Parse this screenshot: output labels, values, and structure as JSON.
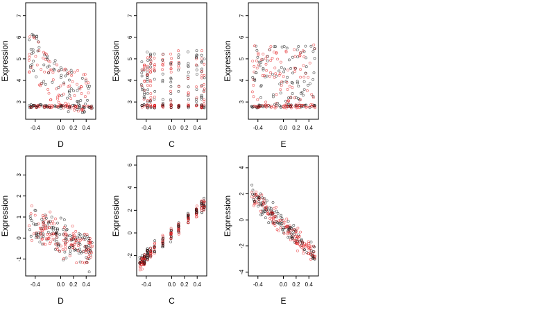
{
  "chart_data": [
    {
      "type": "scatter",
      "xlabel": "D",
      "ylabel": "Expression",
      "xlim": [
        -0.55,
        0.55
      ],
      "ylim": [
        2.2,
        7.6
      ],
      "xticks": [
        -0.4,
        0.0,
        0.2,
        0.4
      ],
      "xtick_labels": [
        "-0.4",
        "0.0",
        "0.2",
        "0.4"
      ],
      "yticks": [
        3,
        4,
        5,
        6,
        7
      ],
      "ytick_labels": [
        "3",
        "4",
        "5",
        "6",
        "7"
      ],
      "series": [
        {
          "color": "#000000"
        },
        {
          "color": "#e31a1c"
        }
      ],
      "trend": {
        "x": [
          -0.5,
          -0.3,
          -0.1,
          0.1,
          0.3,
          0.5
        ],
        "y": [
          4.9,
          4.3,
          3.5,
          3.0,
          2.9,
          2.8
        ]
      },
      "spread": 1.0,
      "floor": 2.8
    },
    {
      "type": "scatter",
      "xlabel": "C",
      "ylabel": "Expression",
      "xlim": [
        -0.55,
        0.55
      ],
      "ylim": [
        2.2,
        7.6
      ],
      "xticks": [
        -0.4,
        0.0,
        0.2,
        0.4
      ],
      "xtick_labels": [
        "-0.4",
        "0.0",
        "0.2",
        "0.4"
      ],
      "yticks": [
        3,
        4,
        5,
        6,
        7
      ],
      "ytick_labels": [
        "3",
        "4",
        "5",
        "6",
        "7"
      ],
      "series": [
        {
          "color": "#000000"
        },
        {
          "color": "#e31a1c"
        }
      ],
      "columns": [
        -0.47,
        -0.43,
        -0.38,
        -0.33,
        -0.27,
        -0.14,
        -0.01,
        0.11,
        0.26,
        0.39,
        0.47,
        0.51
      ],
      "trend": {
        "x": [
          -0.5,
          0.5
        ],
        "y": [
          3.5,
          3.6
        ]
      },
      "spread": 1.2,
      "floor": 2.8
    },
    {
      "type": "scatter",
      "xlabel": "E",
      "ylabel": "Expression",
      "xlim": [
        -0.55,
        0.55
      ],
      "ylim": [
        2.2,
        7.6
      ],
      "xticks": [
        -0.4,
        0.0,
        0.2,
        0.4
      ],
      "xtick_labels": [
        "-0.4",
        "0.0",
        "0.2",
        "0.4"
      ],
      "yticks": [
        3,
        4,
        5,
        6,
        7
      ],
      "ytick_labels": [
        "3",
        "4",
        "5",
        "6",
        "7"
      ],
      "series": [
        {
          "color": "#000000"
        },
        {
          "color": "#e31a1c"
        }
      ],
      "trend": {
        "x": [
          -0.5,
          0.5
        ],
        "y": [
          3.6,
          3.7
        ]
      },
      "spread": 1.3,
      "floor": 2.8
    },
    {
      "type": "scatter",
      "xlabel": "D",
      "ylabel": "Expression",
      "xlim": [
        -0.55,
        0.55
      ],
      "ylim": [
        -1.8,
        3.9
      ],
      "xticks": [
        -0.4,
        0.0,
        0.2,
        0.4
      ],
      "xtick_labels": [
        "-0.4",
        "0.0",
        "0.2",
        "0.4"
      ],
      "yticks": [
        -1,
        0,
        1,
        2,
        3
      ],
      "ytick_labels": [
        "-1",
        "0",
        "1",
        "2",
        "3"
      ],
      "series": [
        {
          "color": "#000000"
        },
        {
          "color": "#e31a1c"
        }
      ],
      "trend": {
        "x": [
          -0.5,
          0.5
        ],
        "y": [
          0.8,
          -0.7
        ]
      },
      "spread": 0.6
    },
    {
      "type": "scatter",
      "xlabel": "C",
      "ylabel": "Expression",
      "xlim": [
        -0.55,
        0.55
      ],
      "ylim": [
        -3.8,
        6.8
      ],
      "xticks": [
        -0.4,
        0.0,
        0.2,
        0.4
      ],
      "xtick_labels": [
        "-0.4",
        "0.0",
        "0.2",
        "0.4"
      ],
      "yticks": [
        -2,
        0,
        2,
        4,
        6
      ],
      "ytick_labels": [
        "-2",
        "0",
        "2",
        "4",
        "6"
      ],
      "series": [
        {
          "color": "#000000"
        },
        {
          "color": "#e31a1c"
        }
      ],
      "columns": [
        -0.5,
        -0.47,
        -0.43,
        -0.38,
        -0.33,
        -0.27,
        -0.14,
        -0.01,
        0.11,
        0.26,
        0.39,
        0.47,
        0.51
      ],
      "trend": {
        "x": [
          -0.5,
          0.5
        ],
        "y": [
          -2.7,
          2.5
        ]
      },
      "spread": 0.4
    },
    {
      "type": "scatter",
      "xlabel": "E",
      "ylabel": "Expression",
      "xlim": [
        -0.55,
        0.55
      ],
      "ylim": [
        -4.3,
        4.9
      ],
      "xticks": [
        -0.4,
        0.0,
        0.2,
        0.4
      ],
      "xtick_labels": [
        "-0.4",
        "0.0",
        "0.2",
        "0.4"
      ],
      "yticks": [
        -4,
        -2,
        0,
        2,
        4
      ],
      "ytick_labels": [
        "-4",
        "-2",
        "0",
        "2",
        "4"
      ],
      "series": [
        {
          "color": "#000000"
        },
        {
          "color": "#e31a1c"
        }
      ],
      "trend": {
        "x": [
          -0.5,
          0.5
        ],
        "y": [
          2.0,
          -2.8
        ]
      },
      "spread": 0.5
    }
  ]
}
